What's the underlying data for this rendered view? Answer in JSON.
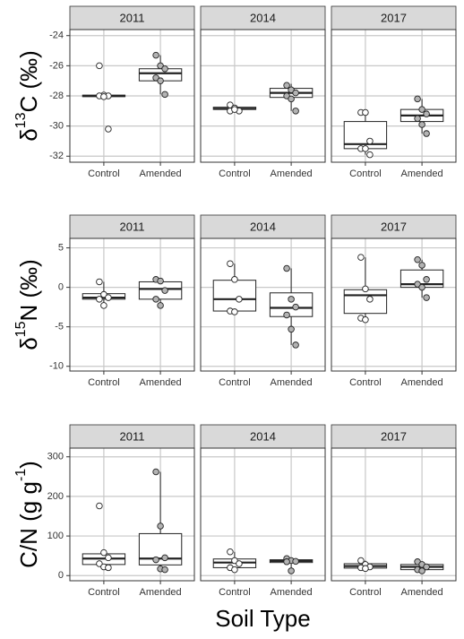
{
  "chart_data": [
    {
      "type": "box",
      "ylabel": [
        "δ",
        "13",
        "C (‰)"
      ],
      "ylim": [
        -32.4,
        -23.6
      ],
      "yticks": [
        -24,
        -26,
        -28,
        -30,
        -32
      ],
      "categories": [
        "Control",
        "Amended"
      ],
      "point_colors": [
        "#ffffff",
        "#b3b3b3"
      ],
      "facets": [
        {
          "title": "2011",
          "boxes": [
            {
              "whisker_low": -28.05,
              "q1": -28.05,
              "median": -28,
              "q3": -27.95,
              "whisker_high": -27.95,
              "points": [
                -26,
                -27.95,
                -28,
                -28,
                -28.05,
                -30.2
              ]
            },
            {
              "whisker_low": -27.9,
              "q1": -27,
              "median": -26.5,
              "q3": -26.2,
              "whisker_high": -25.3,
              "points": [
                -25.3,
                -26,
                -26.2,
                -26.8,
                -27,
                -27.9
              ]
            }
          ]
        },
        {
          "title": "2014",
          "boxes": [
            {
              "whisker_low": -29,
              "q1": -28.9,
              "median": -28.85,
              "q3": -28.75,
              "whisker_high": -28.6,
              "points": [
                -28.6,
                -28.8,
                -29,
                -29,
                -28.9
              ]
            },
            {
              "whisker_low": -29,
              "q1": -28.1,
              "median": -27.8,
              "q3": -27.5,
              "whisker_high": -27.2,
              "points": [
                -27.3,
                -27.6,
                -27.8,
                -28,
                -28.2,
                -29
              ]
            }
          ]
        },
        {
          "title": "2017",
          "boxes": [
            {
              "whisker_low": -31.9,
              "q1": -31.5,
              "median": -31.2,
              "q3": -29.7,
              "whisker_high": -29.1,
              "points": [
                -29.1,
                -29.1,
                -31,
                -31.5,
                -31.5,
                -31.9
              ]
            },
            {
              "whisker_low": -30.5,
              "q1": -29.7,
              "median": -29.3,
              "q3": -28.9,
              "whisker_high": -28.2,
              "points": [
                -28.2,
                -28.9,
                -29.2,
                -29.5,
                -29.9,
                -30.5
              ]
            }
          ]
        }
      ]
    },
    {
      "type": "box",
      "ylabel": [
        "δ",
        "15",
        "N (‰)"
      ],
      "ylim": [
        -10.6,
        6.2
      ],
      "yticks": [
        5,
        0,
        -5,
        -10
      ],
      "categories": [
        "Control",
        "Amended"
      ],
      "point_colors": [
        "#ffffff",
        "#b3b3b3"
      ],
      "facets": [
        {
          "title": "2011",
          "boxes": [
            {
              "whisker_low": -2.3,
              "q1": -1.5,
              "median": -1.3,
              "q3": -0.8,
              "whisker_high": 0.7,
              "points": [
                0.7,
                -0.9,
                -1.3,
                -1.5,
                -2.3
              ]
            },
            {
              "whisker_low": -2.3,
              "q1": -1.5,
              "median": -0.2,
              "q3": 0.7,
              "whisker_high": 1.0,
              "points": [
                1.0,
                0.8,
                -0.4,
                -1.5,
                -2.3
              ]
            }
          ]
        },
        {
          "title": "2014",
          "boxes": [
            {
              "whisker_low": -3.1,
              "q1": -3,
              "median": -1.5,
              "q3": 0.9,
              "whisker_high": 3.0,
              "points": [
                3.0,
                1.0,
                -1.5,
                -3.0,
                -3.1
              ]
            },
            {
              "whisker_low": -7.3,
              "q1": -3.7,
              "median": -2.6,
              "q3": -0.7,
              "whisker_high": 2.4,
              "points": [
                2.4,
                -1.5,
                -2.5,
                -3.5,
                -5.3,
                -7.3
              ]
            }
          ]
        },
        {
          "title": "2017",
          "boxes": [
            {
              "whisker_low": -4.1,
              "q1": -3.3,
              "median": -1,
              "q3": -0.3,
              "whisker_high": 3.8,
              "points": [
                3.8,
                -0.2,
                -1.5,
                -3.9,
                -4.1
              ]
            },
            {
              "whisker_low": -1.3,
              "q1": 0,
              "median": 0.4,
              "q3": 2.2,
              "whisker_high": 3.5,
              "points": [
                3.5,
                2.8,
                1.0,
                0.4,
                0,
                -1.3
              ]
            }
          ]
        }
      ]
    },
    {
      "type": "box",
      "ylabel": [
        "C/N (g g",
        "-1",
        ")"
      ],
      "ylim": [
        -13,
        322
      ],
      "yticks": [
        300,
        200,
        100,
        0
      ],
      "categories": [
        "Control",
        "Amended"
      ],
      "point_colors": [
        "#ffffff",
        "#b3b3b3"
      ],
      "xlabel": "Soil Type",
      "facets": [
        {
          "title": "2011",
          "boxes": [
            {
              "whisker_low": 20,
              "q1": 28,
              "median": 43,
              "q3": 55,
              "whisker_high": 60,
              "points": [
                176,
                58,
                45,
                30,
                22,
                20
              ]
            },
            {
              "whisker_low": 15,
              "q1": 27,
              "median": 43,
              "q3": 106,
              "whisker_high": 262,
              "points": [
                262,
                125,
                45,
                40,
                17,
                15
              ]
            }
          ]
        },
        {
          "title": "2014",
          "boxes": [
            {
              "whisker_low": 15,
              "q1": 20,
              "median": 33,
              "q3": 42,
              "whisker_high": 60,
              "points": [
                60,
                38,
                30,
                20,
                15
              ]
            },
            {
              "whisker_low": 12,
              "q1": 33,
              "median": 37,
              "q3": 40,
              "whisker_high": 43,
              "points": [
                43,
                38,
                36,
                35,
                12
              ]
            }
          ]
        },
        {
          "title": "2017",
          "boxes": [
            {
              "whisker_low": 18,
              "q1": 19,
              "median": 24,
              "q3": 30,
              "whisker_high": 38,
              "points": [
                38,
                28,
                22,
                20,
                18
              ]
            },
            {
              "whisker_low": 11,
              "q1": 15,
              "median": 22,
              "q3": 28,
              "whisker_high": 35,
              "points": [
                35,
                28,
                22,
                15,
                12
              ]
            }
          ]
        }
      ]
    }
  ]
}
